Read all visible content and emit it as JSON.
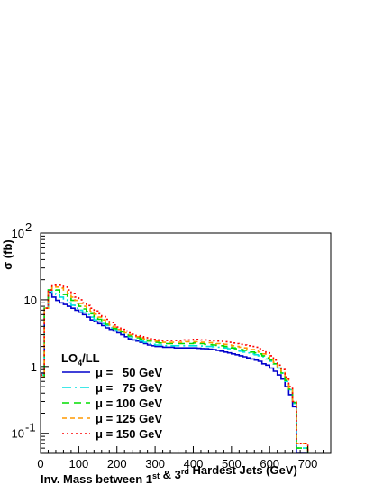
{
  "chart_data": {
    "type": "line",
    "style": "step-histogram",
    "xlabel": "Inv. Mass between 1st & 3rd Hardest Jets (GeV)",
    "ylabel": "σ (fb)",
    "xlim": [
      0,
      760
    ],
    "ylim": [
      0.05,
      100
    ],
    "yscale": "log",
    "grid": false,
    "legend": {
      "title": "LO4/LL",
      "placement": "bottom-left"
    },
    "x_ticks": [
      0,
      100,
      200,
      300,
      400,
      500,
      600,
      700
    ],
    "y_ticks": [
      {
        "value": 0.1,
        "label": "10",
        "exp": "-1"
      },
      {
        "value": 1,
        "label": "1",
        "exp": ""
      },
      {
        "value": 10,
        "label": "10",
        "exp": ""
      },
      {
        "value": 100,
        "label": "10",
        "exp": "2"
      }
    ],
    "bin_edges": [
      0,
      10,
      20,
      30,
      40,
      50,
      60,
      70,
      80,
      90,
      100,
      110,
      120,
      130,
      140,
      150,
      160,
      170,
      180,
      190,
      200,
      210,
      220,
      230,
      240,
      250,
      260,
      270,
      280,
      290,
      300,
      310,
      320,
      330,
      340,
      350,
      360,
      370,
      380,
      390,
      400,
      410,
      420,
      430,
      440,
      450,
      460,
      470,
      480,
      490,
      500,
      510,
      520,
      530,
      540,
      550,
      560,
      570,
      580,
      590,
      600,
      610,
      620,
      630,
      640,
      650,
      660,
      670,
      680,
      690,
      700,
      710,
      720,
      730,
      740,
      750
    ],
    "series": [
      {
        "name": "μ =   50 GeV",
        "color": "#0000cc",
        "dash": "",
        "values": [
          0.8,
          7.5,
          13,
          11,
          9.8,
          9,
          8.5,
          8,
          7.5,
          7,
          6.5,
          6,
          5.5,
          5,
          4.7,
          4.4,
          4.1,
          3.8,
          3.6,
          3.4,
          3.2,
          3,
          2.8,
          2.6,
          2.5,
          2.4,
          2.3,
          2.2,
          2.1,
          2.05,
          2,
          2,
          1.95,
          1.95,
          1.95,
          1.9,
          1.9,
          1.9,
          1.9,
          1.9,
          1.9,
          1.88,
          1.86,
          1.85,
          1.82,
          1.8,
          1.75,
          1.7,
          1.65,
          1.6,
          1.55,
          1.5,
          1.45,
          1.4,
          1.35,
          1.3,
          1.25,
          1.2,
          1.1,
          1.05,
          0.95,
          0.85,
          0.75,
          0.65,
          0.5,
          0.38,
          0.25,
          0.05,
          0.05,
          0.05,
          0,
          0,
          0,
          0,
          0
        ]
      },
      {
        "name": "μ =   75 GeV",
        "color": "#00e0e0",
        "dash": "10,4,2,4",
        "values": [
          0.75,
          7.5,
          14,
          13,
          12,
          11,
          10,
          9,
          8.3,
          7.5,
          7,
          6.5,
          6,
          5.5,
          5,
          4.7,
          4.4,
          4.1,
          3.8,
          3.6,
          3.4,
          3.2,
          3,
          2.8,
          2.65,
          2.5,
          2.4,
          2.3,
          2.2,
          2.15,
          2.1,
          2.1,
          2.05,
          2.05,
          2.05,
          2.05,
          2.05,
          2.05,
          2.05,
          2.05,
          2.05,
          2.05,
          2.03,
          2,
          2,
          1.98,
          1.95,
          1.92,
          1.9,
          1.85,
          1.8,
          1.75,
          1.7,
          1.65,
          1.6,
          1.55,
          1.5,
          1.45,
          1.4,
          1.3,
          1.2,
          1.1,
          0.95,
          0.8,
          0.6,
          0.45,
          0.28,
          0.06,
          0.06,
          0.06,
          0,
          0,
          0,
          0,
          0
        ]
      },
      {
        "name": "μ = 100 GeV",
        "color": "#00dd00",
        "dash": "8,5",
        "values": [
          0.7,
          7.5,
          14,
          15,
          14,
          13,
          12,
          11,
          9.8,
          8.8,
          8,
          7.3,
          6.7,
          6.2,
          5.6,
          5.1,
          4.7,
          4.3,
          4,
          3.7,
          3.5,
          3.3,
          3.1,
          2.9,
          2.8,
          2.7,
          2.6,
          2.5,
          2.4,
          2.35,
          2.3,
          2.25,
          2.2,
          2.2,
          2.2,
          2.2,
          2.2,
          2.2,
          2.2,
          2.2,
          2.25,
          2.2,
          2.2,
          2.15,
          2.12,
          2.1,
          2.07,
          2.05,
          2,
          1.95,
          1.9,
          1.85,
          1.8,
          1.75,
          1.7,
          1.65,
          1.6,
          1.55,
          1.45,
          1.35,
          1.25,
          1.1,
          0.95,
          0.8,
          0.62,
          0.46,
          0.29,
          0.06,
          0.06,
          0.06,
          0,
          0,
          0,
          0,
          0
        ]
      },
      {
        "name": "μ = 125 GeV",
        "color": "#ff9900",
        "dash": "5,4",
        "values": [
          0.7,
          7.5,
          14,
          16,
          15.5,
          15,
          14,
          12.5,
          11,
          9.8,
          8.8,
          8,
          7.3,
          6.7,
          6.1,
          5.5,
          5,
          4.6,
          4.2,
          3.9,
          3.6,
          3.4,
          3.2,
          3,
          2.9,
          2.8,
          2.7,
          2.6,
          2.5,
          2.45,
          2.4,
          2.35,
          2.3,
          2.3,
          2.3,
          2.3,
          2.3,
          2.3,
          2.35,
          2.35,
          2.35,
          2.35,
          2.3,
          2.3,
          2.28,
          2.25,
          2.2,
          2.18,
          2.15,
          2.1,
          2.05,
          2,
          1.95,
          1.9,
          1.85,
          1.8,
          1.75,
          1.65,
          1.55,
          1.45,
          1.3,
          1.15,
          1,
          0.85,
          0.65,
          0.48,
          0.3,
          0.07,
          0.07,
          0.07,
          0,
          0,
          0,
          0,
          0
        ]
      },
      {
        "name": "μ = 150 GeV",
        "color": "#ff0000",
        "dash": "2,3",
        "values": [
          0.75,
          7.5,
          14,
          16.5,
          16.5,
          16.5,
          15.5,
          14,
          12.5,
          11,
          10,
          9,
          8.2,
          7.5,
          6.8,
          6.2,
          5.6,
          5.1,
          4.6,
          4.2,
          3.9,
          3.6,
          3.4,
          3.2,
          3.05,
          2.9,
          2.8,
          2.7,
          2.6,
          2.55,
          2.5,
          2.45,
          2.45,
          2.45,
          2.45,
          2.45,
          2.45,
          2.5,
          2.5,
          2.5,
          2.55,
          2.55,
          2.5,
          2.5,
          2.45,
          2.42,
          2.4,
          2.38,
          2.35,
          2.3,
          2.25,
          2.2,
          2.15,
          2.1,
          2.05,
          2,
          1.95,
          1.85,
          1.75,
          1.6,
          1.45,
          1.25,
          1.05,
          0.9,
          0.7,
          0.5,
          0.3,
          0.07,
          0.07,
          0.07,
          0,
          0,
          0,
          0,
          0
        ]
      }
    ]
  }
}
